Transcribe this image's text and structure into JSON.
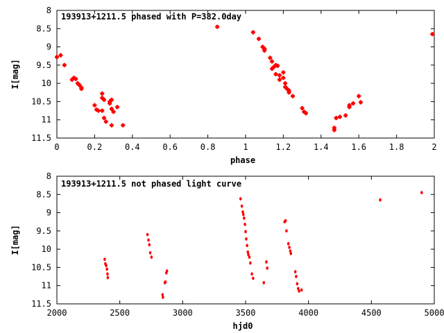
{
  "chart_data": [
    {
      "type": "scatter",
      "title": "193913+1211.5 phased with P=382.0day",
      "xlabel": "phase",
      "ylabel": "I[mag]",
      "xlim": [
        0,
        2
      ],
      "ylim": [
        8,
        11.5
      ],
      "y_inverted": true,
      "x_ticks": [
        {
          "v": 0,
          "label": "0"
        },
        {
          "v": 0.2,
          "label": "0.2"
        },
        {
          "v": 0.4,
          "label": "0.4"
        },
        {
          "v": 0.6,
          "label": "0.6"
        },
        {
          "v": 0.8,
          "label": "0.8"
        },
        {
          "v": 1,
          "label": "1"
        },
        {
          "v": 1.2,
          "label": "1.2"
        },
        {
          "v": 1.4,
          "label": "1.4"
        },
        {
          "v": 1.6,
          "label": "1.6"
        },
        {
          "v": 1.8,
          "label": "1.8"
        },
        {
          "v": 2,
          "label": "2"
        }
      ],
      "y_ticks": [
        {
          "v": 8,
          "label": "8"
        },
        {
          "v": 8.5,
          "label": "8.5"
        },
        {
          "v": 9,
          "label": "9"
        },
        {
          "v": 9.5,
          "label": "9.5"
        },
        {
          "v": 10,
          "label": "10"
        },
        {
          "v": 10.5,
          "label": "10.5"
        },
        {
          "v": 11,
          "label": "11"
        },
        {
          "v": 11.5,
          "label": "11.5"
        }
      ],
      "marker": "plus",
      "color": "#ff0000",
      "points": [
        [
          0.0,
          9.28
        ],
        [
          0.02,
          9.23
        ],
        [
          0.04,
          9.5
        ],
        [
          0.08,
          9.9
        ],
        [
          0.09,
          9.85
        ],
        [
          0.1,
          9.88
        ],
        [
          0.11,
          10.0
        ],
        [
          0.12,
          10.05
        ],
        [
          0.13,
          10.12
        ],
        [
          0.13,
          10.15
        ],
        [
          0.2,
          10.6
        ],
        [
          0.21,
          10.72
        ],
        [
          0.22,
          10.75
        ],
        [
          0.24,
          10.75
        ],
        [
          0.24,
          10.28
        ],
        [
          0.24,
          10.4
        ],
        [
          0.25,
          10.45
        ],
        [
          0.25,
          10.95
        ],
        [
          0.26,
          11.05
        ],
        [
          0.28,
          10.5
        ],
        [
          0.29,
          10.45
        ],
        [
          0.28,
          10.55
        ],
        [
          0.29,
          10.7
        ],
        [
          0.3,
          10.78
        ],
        [
          0.29,
          11.15
        ],
        [
          0.32,
          10.65
        ],
        [
          0.35,
          11.15
        ],
        [
          0.85,
          8.45
        ],
        [
          1.04,
          8.6
        ],
        [
          1.07,
          8.78
        ],
        [
          1.09,
          9.0
        ],
        [
          1.1,
          9.1
        ],
        [
          1.1,
          9.05
        ],
        [
          1.13,
          9.3
        ],
        [
          1.14,
          9.4
        ],
        [
          1.14,
          9.6
        ],
        [
          1.15,
          9.55
        ],
        [
          1.16,
          9.5
        ],
        [
          1.17,
          9.52
        ],
        [
          1.16,
          9.75
        ],
        [
          1.18,
          9.78
        ],
        [
          1.18,
          9.9
        ],
        [
          1.2,
          9.7
        ],
        [
          1.2,
          9.85
        ],
        [
          1.21,
          10.0
        ],
        [
          1.21,
          10.1
        ],
        [
          1.22,
          10.15
        ],
        [
          1.23,
          10.2
        ],
        [
          1.23,
          10.25
        ],
        [
          1.25,
          10.35
        ],
        [
          1.3,
          10.68
        ],
        [
          1.31,
          10.78
        ],
        [
          1.32,
          10.82
        ],
        [
          1.47,
          11.22
        ],
        [
          1.47,
          11.28
        ],
        [
          1.48,
          10.95
        ],
        [
          1.5,
          10.92
        ],
        [
          1.53,
          10.88
        ],
        [
          1.55,
          10.6
        ],
        [
          1.55,
          10.65
        ],
        [
          1.57,
          10.55
        ],
        [
          1.6,
          10.35
        ],
        [
          1.61,
          10.52
        ],
        [
          1.99,
          8.65
        ]
      ]
    },
    {
      "type": "scatter",
      "title": "193913+1211.5 not phased light curve",
      "xlabel": "hjd0",
      "ylabel": "I[mag]",
      "xlim": [
        2000,
        5000
      ],
      "ylim": [
        8,
        11.5
      ],
      "y_inverted": true,
      "x_ticks": [
        {
          "v": 2000,
          "label": "2000"
        },
        {
          "v": 2500,
          "label": "2500"
        },
        {
          "v": 3000,
          "label": "3000"
        },
        {
          "v": 3500,
          "label": "3500"
        },
        {
          "v": 4000,
          "label": "4000"
        },
        {
          "v": 4500,
          "label": "4500"
        },
        {
          "v": 5000,
          "label": "5000"
        }
      ],
      "y_ticks": [
        {
          "v": 8,
          "label": "8"
        },
        {
          "v": 8.5,
          "label": "8.5"
        },
        {
          "v": 9,
          "label": "9"
        },
        {
          "v": 9.5,
          "label": "9.5"
        },
        {
          "v": 10,
          "label": "10"
        },
        {
          "v": 10.5,
          "label": "10.5"
        },
        {
          "v": 11,
          "label": "11"
        },
        {
          "v": 11.5,
          "label": "11.5"
        }
      ],
      "marker": "dot",
      "color": "#ff0000",
      "points": [
        [
          2380,
          10.28
        ],
        [
          2385,
          10.4
        ],
        [
          2392,
          10.45
        ],
        [
          2398,
          10.55
        ],
        [
          2402,
          10.68
        ],
        [
          2405,
          10.78
        ],
        [
          2720,
          9.6
        ],
        [
          2728,
          9.75
        ],
        [
          2735,
          9.88
        ],
        [
          2742,
          10.1
        ],
        [
          2752,
          10.22
        ],
        [
          2840,
          11.25
        ],
        [
          2843,
          11.32
        ],
        [
          2858,
          10.92
        ],
        [
          2863,
          10.9
        ],
        [
          2870,
          10.65
        ],
        [
          2875,
          10.6
        ],
        [
          3460,
          8.62
        ],
        [
          3470,
          8.82
        ],
        [
          3478,
          8.98
        ],
        [
          3482,
          9.05
        ],
        [
          3488,
          9.15
        ],
        [
          3495,
          9.32
        ],
        [
          3500,
          9.52
        ],
        [
          3505,
          9.72
        ],
        [
          3512,
          9.9
        ],
        [
          3518,
          10.08
        ],
        [
          3522,
          10.15
        ],
        [
          3530,
          10.22
        ],
        [
          3538,
          10.38
        ],
        [
          3550,
          10.68
        ],
        [
          3560,
          10.8
        ],
        [
          3645,
          10.92
        ],
        [
          3665,
          10.35
        ],
        [
          3672,
          10.52
        ],
        [
          3810,
          9.25
        ],
        [
          3818,
          9.22
        ],
        [
          3825,
          9.5
        ],
        [
          3840,
          9.85
        ],
        [
          3848,
          9.95
        ],
        [
          3855,
          10.05
        ],
        [
          3860,
          10.12
        ],
        [
          3895,
          10.62
        ],
        [
          3902,
          10.75
        ],
        [
          3910,
          10.95
        ],
        [
          3918,
          11.08
        ],
        [
          3945,
          11.12
        ],
        [
          3925,
          11.15
        ],
        [
          4570,
          8.65
        ],
        [
          4900,
          8.45
        ]
      ]
    }
  ]
}
